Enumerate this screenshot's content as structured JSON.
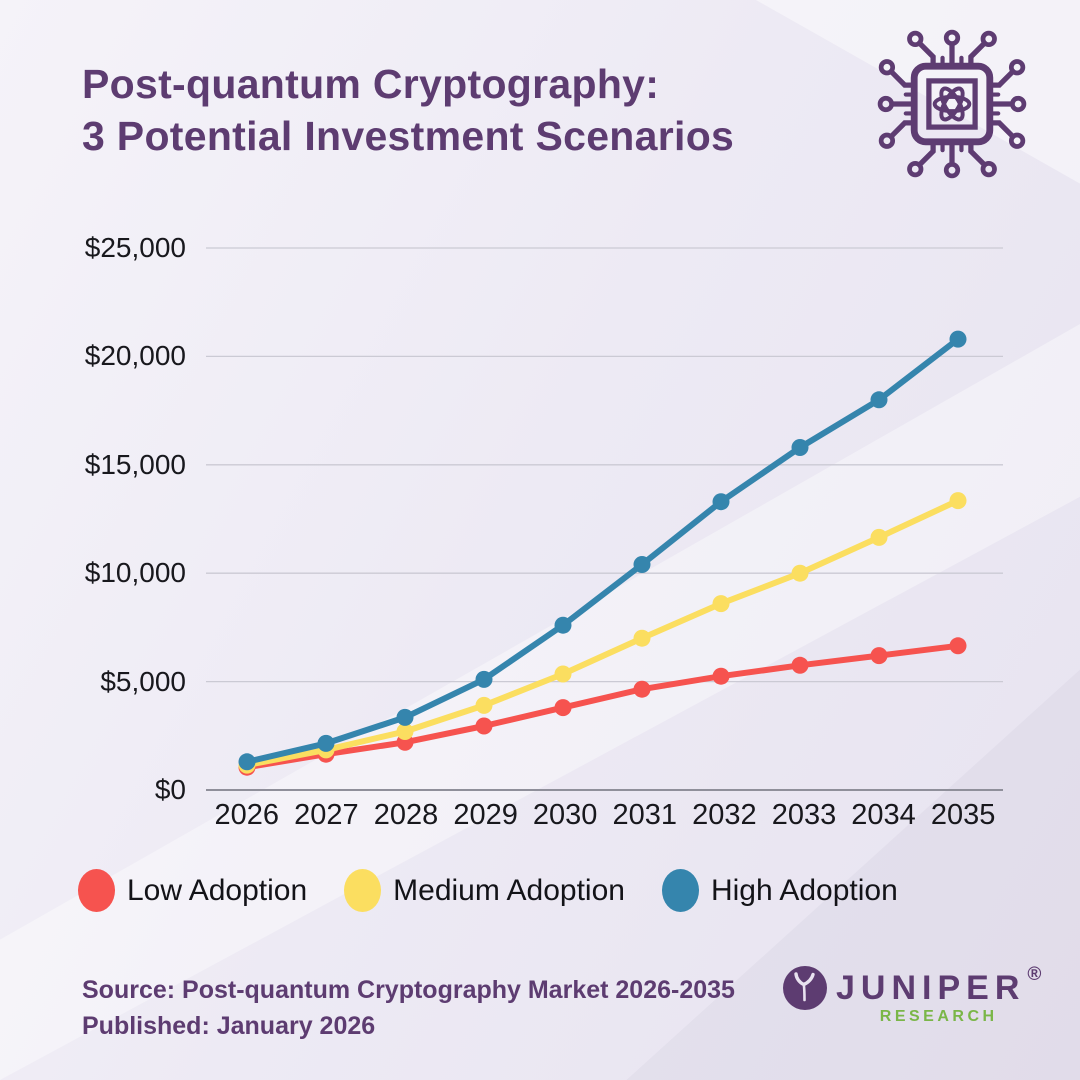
{
  "header": {
    "title_line1": "Post-quantum Cryptography:",
    "title_line2": "3 Potential Investment Scenarios"
  },
  "chart_data": {
    "type": "line",
    "title": "Post-quantum Cryptography: 3 Potential Investment Scenarios",
    "x": [
      2026,
      2027,
      2028,
      2029,
      2030,
      2031,
      2032,
      2033,
      2034,
      2035
    ],
    "xlabel": "",
    "ylabel": "",
    "ylim": [
      0,
      25000
    ],
    "grid": true,
    "legend_position": "bottom",
    "yticks": [
      {
        "label": "$0",
        "value": 0
      },
      {
        "label": "$5,000",
        "value": 5000
      },
      {
        "label": "$10,000",
        "value": 10000
      },
      {
        "label": "$15,000",
        "value": 15000
      },
      {
        "label": "$20,000",
        "value": 20000
      },
      {
        "label": "$25,000",
        "value": 25000
      }
    ],
    "series": [
      {
        "name": "Low Adoption",
        "color": "#F6534F",
        "values": [
          1050,
          1650,
          2200,
          2950,
          3800,
          4650,
          5250,
          5750,
          6200,
          6650
        ]
      },
      {
        "name": "Medium Adoption",
        "color": "#FBDE60",
        "values": [
          1150,
          1850,
          2700,
          3900,
          5350,
          7000,
          8600,
          10000,
          11650,
          13350
        ]
      },
      {
        "name": "High Adoption",
        "color": "#3585AD",
        "values": [
          1300,
          2150,
          3350,
          5100,
          7600,
          10400,
          13300,
          15800,
          18000,
          20800
        ]
      }
    ]
  },
  "footer": {
    "source": "Source: Post-quantum Cryptography Market 2026-2035",
    "published": "Published: January 2026",
    "brand": {
      "name": "JUNIPER",
      "registered": "®",
      "sub": "RESEARCH"
    }
  },
  "colors": {
    "title_purple": "#5D3C71",
    "brand_green": "#7AB648",
    "grid_line": "#CBCAD4",
    "axis_line": "#8F8F9A",
    "background": "#ECE9F3"
  }
}
